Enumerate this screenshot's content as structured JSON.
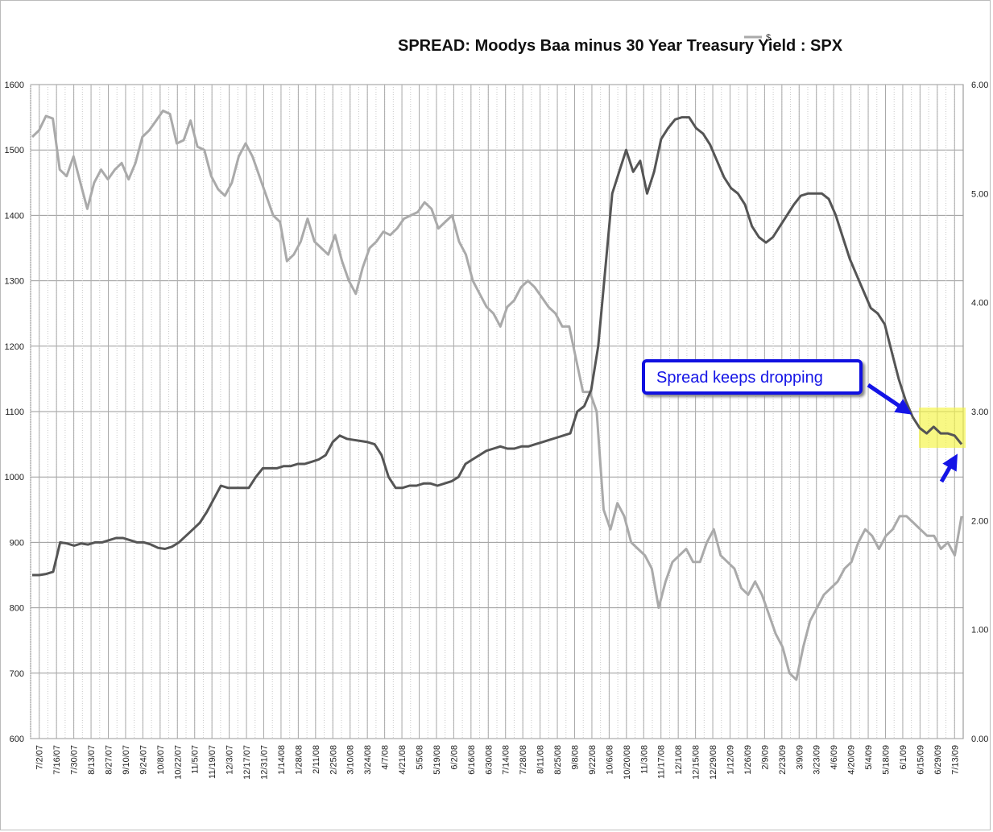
{
  "colors": {
    "spx_line": "#aaaaaa",
    "spread_line": "#555555",
    "callout": "#1414e6",
    "highlight": "#f5f542"
  },
  "chart_data": {
    "type": "line",
    "title": "SPREAD: Moodys Baa minus 30 Year Treasury Yield : SPX",
    "xlabel": "",
    "ylabel": "",
    "left_axis": {
      "ylim": [
        600,
        1600
      ],
      "ticks": [
        "600",
        "700",
        "800",
        "900",
        "1000",
        "1100",
        "1200",
        "1300",
        "1400",
        "1500",
        "1600"
      ]
    },
    "right_axis": {
      "ylim": [
        0,
        6
      ],
      "ticks": [
        "0.00",
        "1.00",
        "2.00",
        "3.00",
        "4.00",
        "5.00",
        "6.00"
      ]
    },
    "x_tick_labels": [
      "7/2/07",
      "7/16/07",
      "7/30/07",
      "8/13/07",
      "8/27/07",
      "9/10/07",
      "9/24/07",
      "10/8/07",
      "10/22/07",
      "11/5/07",
      "11/19/07",
      "12/3/07",
      "12/17/07",
      "12/31/07",
      "1/14/08",
      "1/28/08",
      "2/11/08",
      "2/25/08",
      "3/10/08",
      "3/24/08",
      "4/7/08",
      "4/21/08",
      "5/5/08",
      "5/19/08",
      "6/2/08",
      "6/16/08",
      "6/30/08",
      "7/14/08",
      "7/28/08",
      "8/11/08",
      "8/25/08",
      "9/8/08",
      "9/22/08",
      "10/6/08",
      "10/20/08",
      "11/3/08",
      "11/17/08",
      "12/1/08",
      "12/15/08",
      "12/29/08",
      "1/12/09",
      "1/26/09",
      "2/9/09",
      "2/23/09",
      "3/9/09",
      "3/23/09",
      "4/6/09",
      "4/20/09",
      "5/4/09",
      "5/18/09",
      "6/1/09",
      "6/15/09",
      "6/29/09",
      "7/13/09"
    ],
    "grid": true,
    "series": [
      {
        "name": "SPX",
        "axis": "left",
        "weekly_values": [
          1520,
          1530,
          1552,
          1548,
          1470,
          1460,
          1490,
          1450,
          1410,
          1450,
          1470,
          1455,
          1470,
          1480,
          1455,
          1480,
          1520,
          1530,
          1545,
          1560,
          1555,
          1510,
          1515,
          1545,
          1505,
          1500,
          1460,
          1440,
          1430,
          1450,
          1490,
          1510,
          1490,
          1460,
          1430,
          1400,
          1390,
          1330,
          1340,
          1360,
          1395,
          1360,
          1350,
          1340,
          1370,
          1330,
          1300,
          1280,
          1320,
          1350,
          1360,
          1375,
          1370,
          1380,
          1395,
          1400,
          1405,
          1420,
          1410,
          1380,
          1390,
          1400,
          1360,
          1340,
          1300,
          1280,
          1260,
          1250,
          1230,
          1260,
          1270,
          1290,
          1300,
          1290,
          1275,
          1260,
          1250,
          1230,
          1230,
          1180,
          1130,
          1130,
          1100,
          950,
          920,
          960,
          940,
          900,
          890,
          880,
          860,
          800,
          840,
          870,
          880,
          890,
          870,
          870,
          900,
          920,
          880,
          870,
          860,
          830,
          820,
          840,
          820,
          790,
          760,
          740,
          700,
          690,
          740,
          780,
          800,
          820,
          830,
          840,
          860,
          870,
          900,
          920,
          910,
          890,
          910,
          920,
          940,
          940,
          930,
          920,
          910,
          910,
          890,
          900,
          880,
          940
        ]
      },
      {
        "name": "Spread",
        "axis": "right",
        "weekly_values": [
          1.5,
          1.5,
          1.51,
          1.53,
          1.8,
          1.79,
          1.77,
          1.79,
          1.78,
          1.8,
          1.8,
          1.82,
          1.84,
          1.84,
          1.82,
          1.8,
          1.8,
          1.78,
          1.75,
          1.74,
          1.76,
          1.8,
          1.86,
          1.92,
          1.98,
          2.08,
          2.2,
          2.32,
          2.3,
          2.3,
          2.3,
          2.3,
          2.4,
          2.48,
          2.48,
          2.48,
          2.5,
          2.5,
          2.52,
          2.52,
          2.54,
          2.56,
          2.6,
          2.72,
          2.78,
          2.75,
          2.74,
          2.73,
          2.72,
          2.7,
          2.6,
          2.4,
          2.3,
          2.3,
          2.32,
          2.32,
          2.34,
          2.34,
          2.32,
          2.34,
          2.36,
          2.4,
          2.52,
          2.56,
          2.6,
          2.64,
          2.66,
          2.68,
          2.66,
          2.66,
          2.68,
          2.68,
          2.7,
          2.72,
          2.74,
          2.76,
          2.78,
          2.8,
          3.0,
          3.05,
          3.2,
          3.6,
          4.3,
          5.0,
          5.2,
          5.4,
          5.2,
          5.3,
          5.0,
          5.2,
          5.5,
          5.6,
          5.68,
          5.7,
          5.7,
          5.6,
          5.55,
          5.45,
          5.3,
          5.15,
          5.05,
          5.0,
          4.9,
          4.7,
          4.6,
          4.55,
          4.6,
          4.7,
          4.8,
          4.9,
          4.98,
          5.0,
          5.0,
          5.0,
          4.95,
          4.8,
          4.6,
          4.4,
          4.25,
          4.1,
          3.95,
          3.9,
          3.8,
          3.55,
          3.3,
          3.1,
          2.95,
          2.85,
          2.8,
          2.86,
          2.8,
          2.8,
          2.78,
          2.7
        ]
      }
    ],
    "annotations": [
      {
        "text": "Spread keeps dropping"
      }
    ],
    "legend": {
      "label": "$",
      "placement": "top"
    }
  }
}
